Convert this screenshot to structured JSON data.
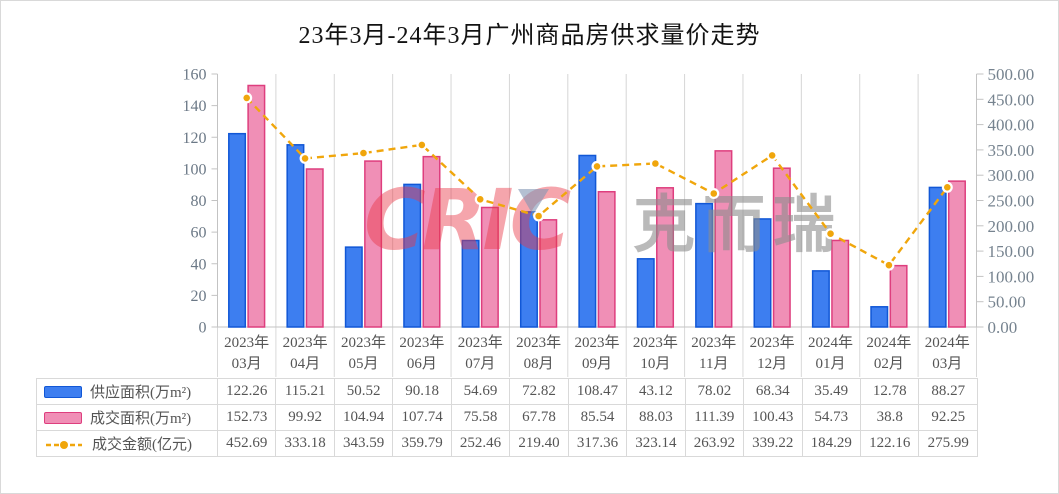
{
  "title": "23年3月-24年3月广州商品房供求量价走势",
  "watermark": {
    "latin": "CRIC",
    "cjk": "克而瑞"
  },
  "chart_data": {
    "type": "bar+line combo",
    "title": "23年3月-24年3月广州商品房供求量价走势",
    "categories": [
      "2023年03月",
      "2023年04月",
      "2023年05月",
      "2023年06月",
      "2023年07月",
      "2023年08月",
      "2023年09月",
      "2023年10月",
      "2023年11月",
      "2023年12月",
      "2024年01月",
      "2024年02月",
      "2024年03月"
    ],
    "series": [
      {
        "name": "供应面积(万m²)",
        "type": "bar",
        "axis": "left",
        "fill": "#3D7EF0",
        "stroke": "#1157D6",
        "values": [
          122.26,
          115.21,
          50.52,
          90.18,
          54.69,
          72.82,
          108.47,
          43.12,
          78.02,
          68.34,
          35.49,
          12.78,
          88.27
        ]
      },
      {
        "name": "成交面积(万m²)",
        "type": "bar",
        "axis": "left",
        "fill": "#F08FB6",
        "stroke": "#DE3E7E",
        "values": [
          152.73,
          99.92,
          104.94,
          107.74,
          75.58,
          67.78,
          85.54,
          88.03,
          111.39,
          100.43,
          54.73,
          38.8,
          92.25
        ]
      },
      {
        "name": "成交金额(亿元)",
        "type": "line",
        "axis": "right",
        "stroke": "#F0A60C",
        "marker_ring": "#FFFFFF",
        "line_style": "dashed",
        "format": "fixed2",
        "values": [
          452.69,
          333.18,
          343.59,
          359.79,
          252.46,
          219.4,
          317.36,
          323.14,
          263.92,
          339.22,
          184.29,
          122.16,
          275.99
        ]
      }
    ],
    "left_axis": {
      "min": 0,
      "max": 160,
      "step": 20
    },
    "right_axis": {
      "min": 0,
      "max": 500,
      "step": 50,
      "format": "fixed2"
    },
    "grid": "vertical-only",
    "legend_position": "table-left"
  }
}
